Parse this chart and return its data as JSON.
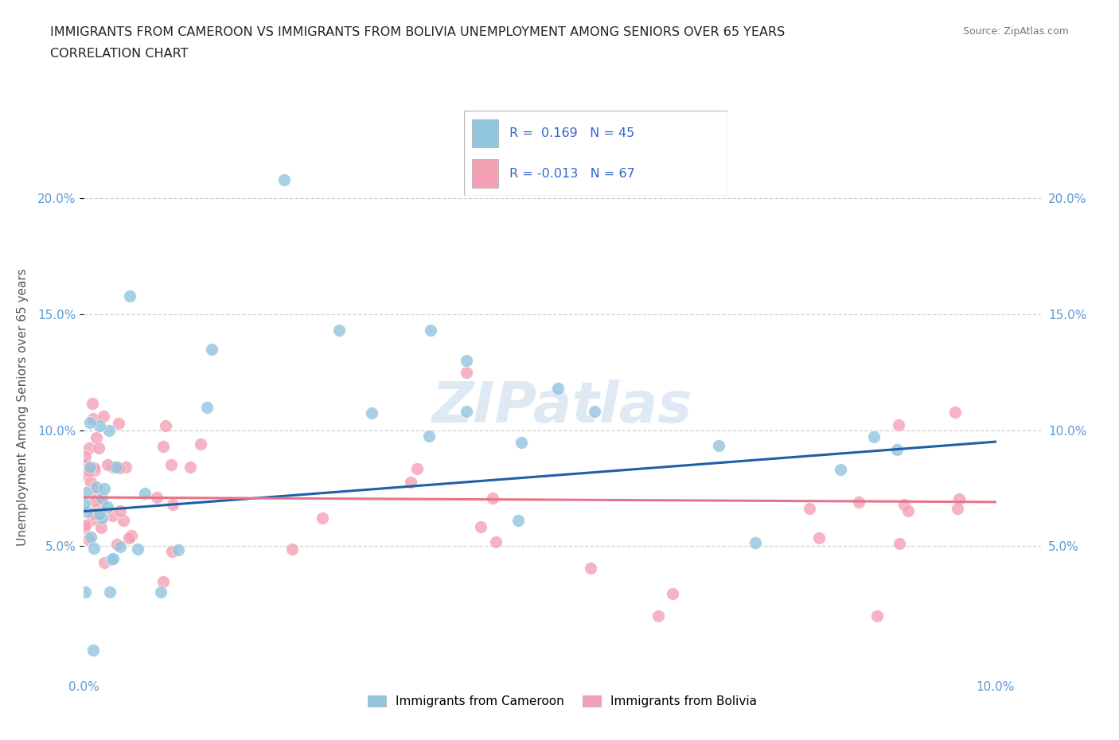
{
  "title_line1": "IMMIGRANTS FROM CAMEROON VS IMMIGRANTS FROM BOLIVIA UNEMPLOYMENT AMONG SENIORS OVER 65 YEARS",
  "title_line2": "CORRELATION CHART",
  "source": "Source: ZipAtlas.com",
  "ylabel": "Unemployment Among Seniors over 65 years",
  "watermark": "ZIPatlas",
  "xlim": [
    0.0,
    0.105
  ],
  "ylim": [
    -0.005,
    0.225
  ],
  "cameroon_R": 0.169,
  "cameroon_N": 45,
  "bolivia_R": -0.013,
  "bolivia_N": 67,
  "cameroon_color": "#92c5de",
  "bolivia_color": "#f4a0b5",
  "cameroon_line_color": "#1f5fa6",
  "bolivia_line_color": "#e8748a",
  "legend_label_cameroon": "Immigrants from Cameroon",
  "legend_label_bolivia": "Immigrants from Bolivia",
  "grid_color": "#d0d0d0",
  "title_color": "#222222",
  "tick_color": "#5b9bd5",
  "ylabel_color": "#555555",
  "source_color": "#777777",
  "legend_text_color": "#3366cc"
}
